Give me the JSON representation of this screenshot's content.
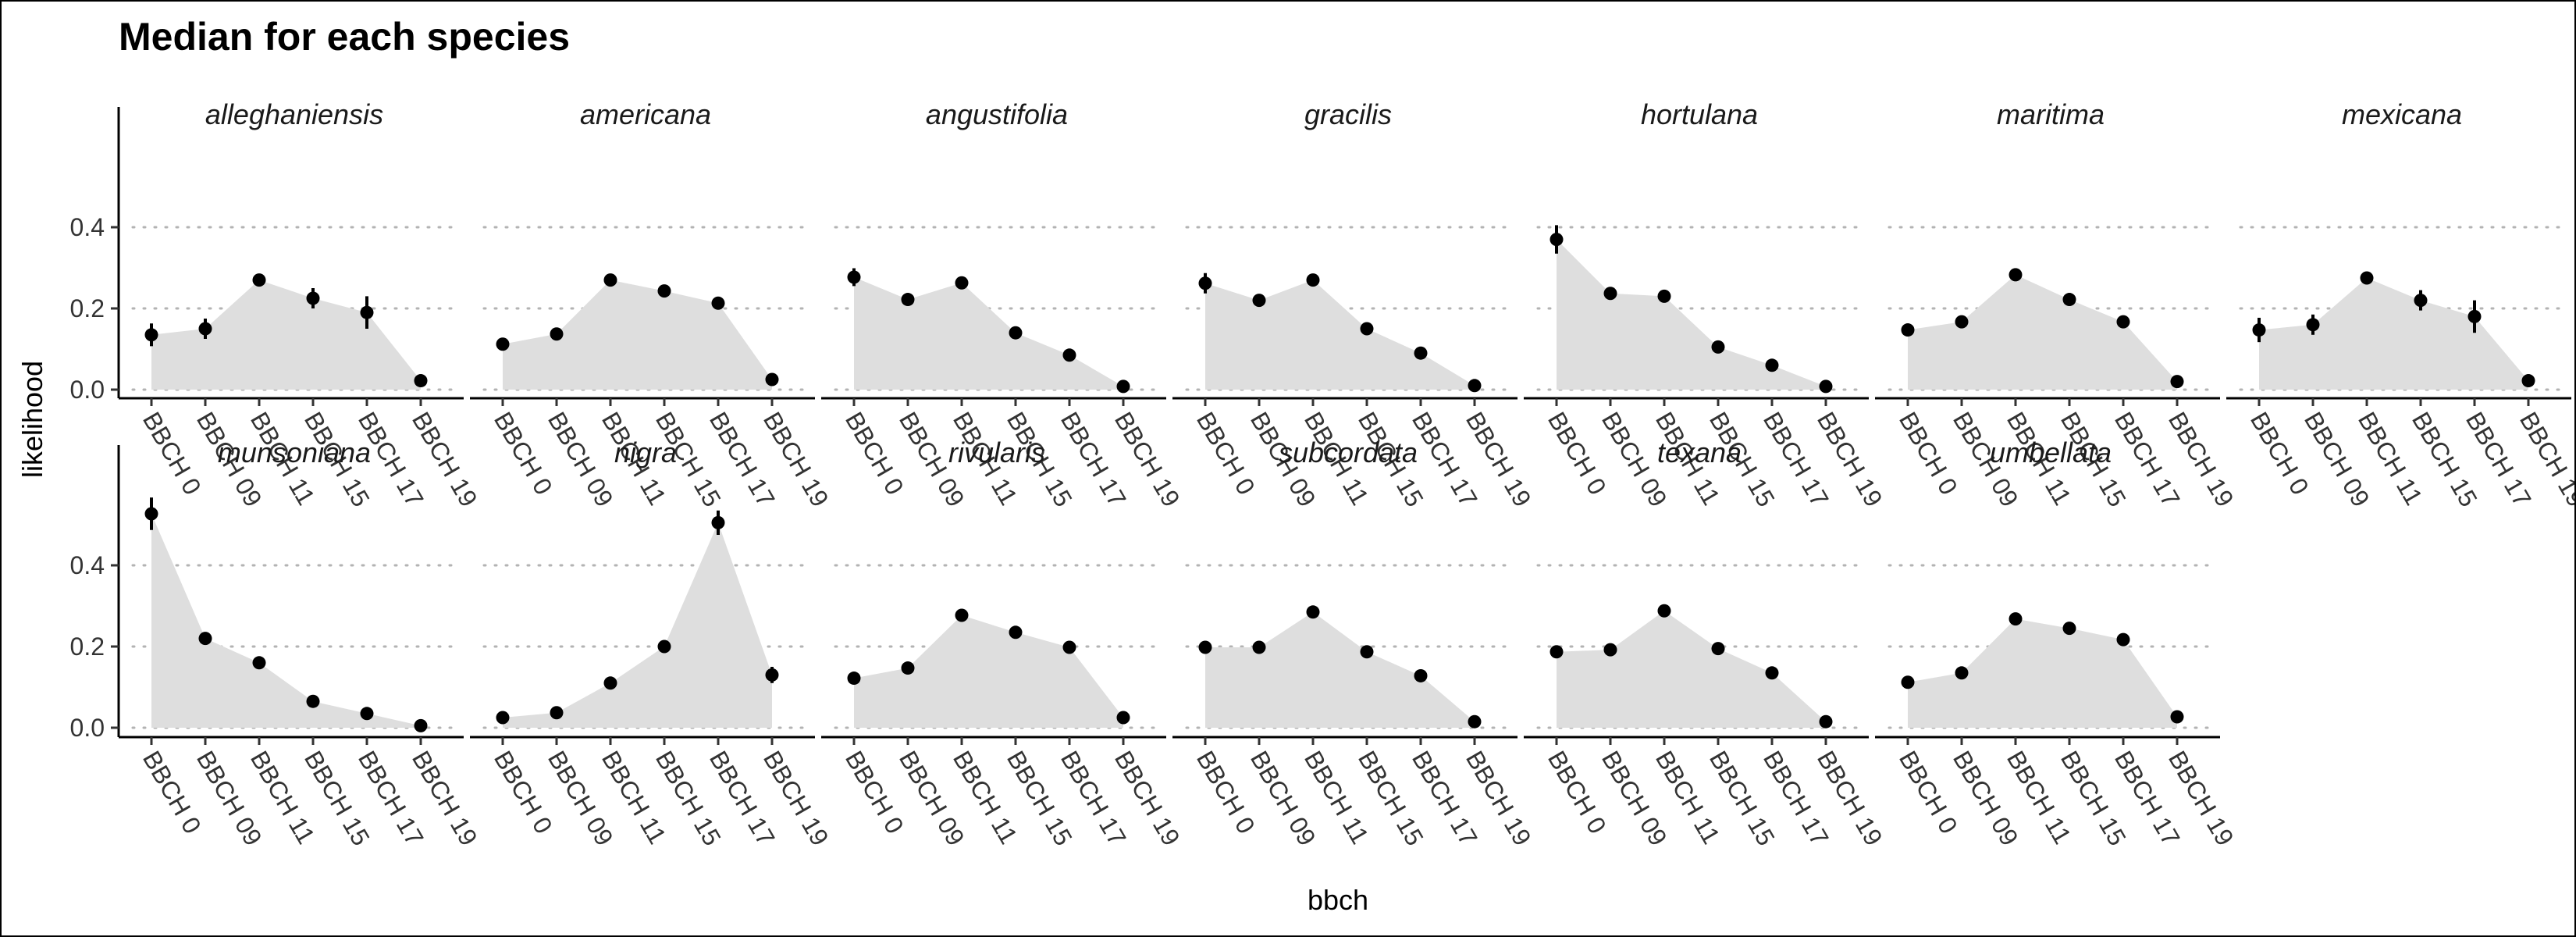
{
  "chart_data": {
    "type": "area",
    "title": "Median for each species",
    "xlabel": "bbch",
    "ylabel": "likelihood",
    "ylim": [
      0,
      0.6
    ],
    "yticks": [
      0.0,
      0.2,
      0.4
    ],
    "ytick_labels": [
      "0.0",
      "0.2",
      "0.4"
    ],
    "categories": [
      "BBCH 0",
      "BBCH 09",
      "BBCH 11",
      "BBCH 15",
      "BBCH 17",
      "BBCH 19"
    ],
    "grid": "horizontal dotted",
    "colors": {
      "area": "#dedede",
      "point": "#000000",
      "axis": "#000000",
      "grid": "#b3b3b3"
    },
    "facets": [
      {
        "name": "alleghaniensis",
        "values": [
          0.135,
          0.15,
          0.27,
          0.225,
          0.19,
          0.022
        ],
        "errors": [
          0.028,
          0.025,
          0.012,
          0.025,
          0.04,
          0.006
        ]
      },
      {
        "name": "americana",
        "values": [
          0.112,
          0.137,
          0.27,
          0.243,
          0.213,
          0.025
        ],
        "errors": [
          0.008,
          0.01,
          0.01,
          0.01,
          0.013,
          0.006
        ]
      },
      {
        "name": "angustifolia",
        "values": [
          0.277,
          0.222,
          0.263,
          0.14,
          0.085,
          0.008
        ],
        "errors": [
          0.022,
          0.012,
          0.012,
          0.01,
          0.008,
          0.005
        ]
      },
      {
        "name": "gracilis",
        "values": [
          0.262,
          0.22,
          0.27,
          0.15,
          0.09,
          0.01
        ],
        "errors": [
          0.025,
          0.01,
          0.015,
          0.008,
          0.008,
          0.005
        ]
      },
      {
        "name": "hortulana",
        "values": [
          0.37,
          0.237,
          0.23,
          0.105,
          0.06,
          0.008
        ],
        "errors": [
          0.035,
          0.015,
          0.015,
          0.008,
          0.008,
          0.004
        ]
      },
      {
        "name": "maritima",
        "values": [
          0.147,
          0.167,
          0.283,
          0.222,
          0.167,
          0.02
        ],
        "errors": [
          0.01,
          0.01,
          0.01,
          0.01,
          0.01,
          0.004
        ]
      },
      {
        "name": "mexicana",
        "values": [
          0.147,
          0.16,
          0.275,
          0.22,
          0.18,
          0.022
        ],
        "errors": [
          0.03,
          0.025,
          0.012,
          0.025,
          0.04,
          0.006
        ]
      },
      {
        "name": "munsoniana",
        "values": [
          0.527,
          0.22,
          0.16,
          0.065,
          0.035,
          0.005
        ],
        "errors": [
          0.04,
          0.01,
          0.01,
          0.006,
          0.005,
          0.003
        ]
      },
      {
        "name": "nigra",
        "values": [
          0.025,
          0.037,
          0.11,
          0.2,
          0.505,
          0.13
        ],
        "errors": [
          0.005,
          0.005,
          0.01,
          0.01,
          0.03,
          0.02
        ]
      },
      {
        "name": "rivularis",
        "values": [
          0.122,
          0.147,
          0.277,
          0.235,
          0.198,
          0.025
        ],
        "errors": [
          0.008,
          0.01,
          0.01,
          0.01,
          0.01,
          0.005
        ]
      },
      {
        "name": "subcordata",
        "values": [
          0.198,
          0.198,
          0.285,
          0.187,
          0.128,
          0.015
        ],
        "errors": [
          0.015,
          0.01,
          0.01,
          0.01,
          0.01,
          0.004
        ]
      },
      {
        "name": "texana",
        "values": [
          0.187,
          0.192,
          0.288,
          0.195,
          0.135,
          0.015
        ],
        "errors": [
          0.01,
          0.01,
          0.01,
          0.01,
          0.01,
          0.004
        ]
      },
      {
        "name": "umbellata",
        "values": [
          0.112,
          0.135,
          0.268,
          0.245,
          0.217,
          0.027
        ],
        "errors": [
          0.008,
          0.01,
          0.01,
          0.01,
          0.01,
          0.005
        ]
      }
    ]
  }
}
